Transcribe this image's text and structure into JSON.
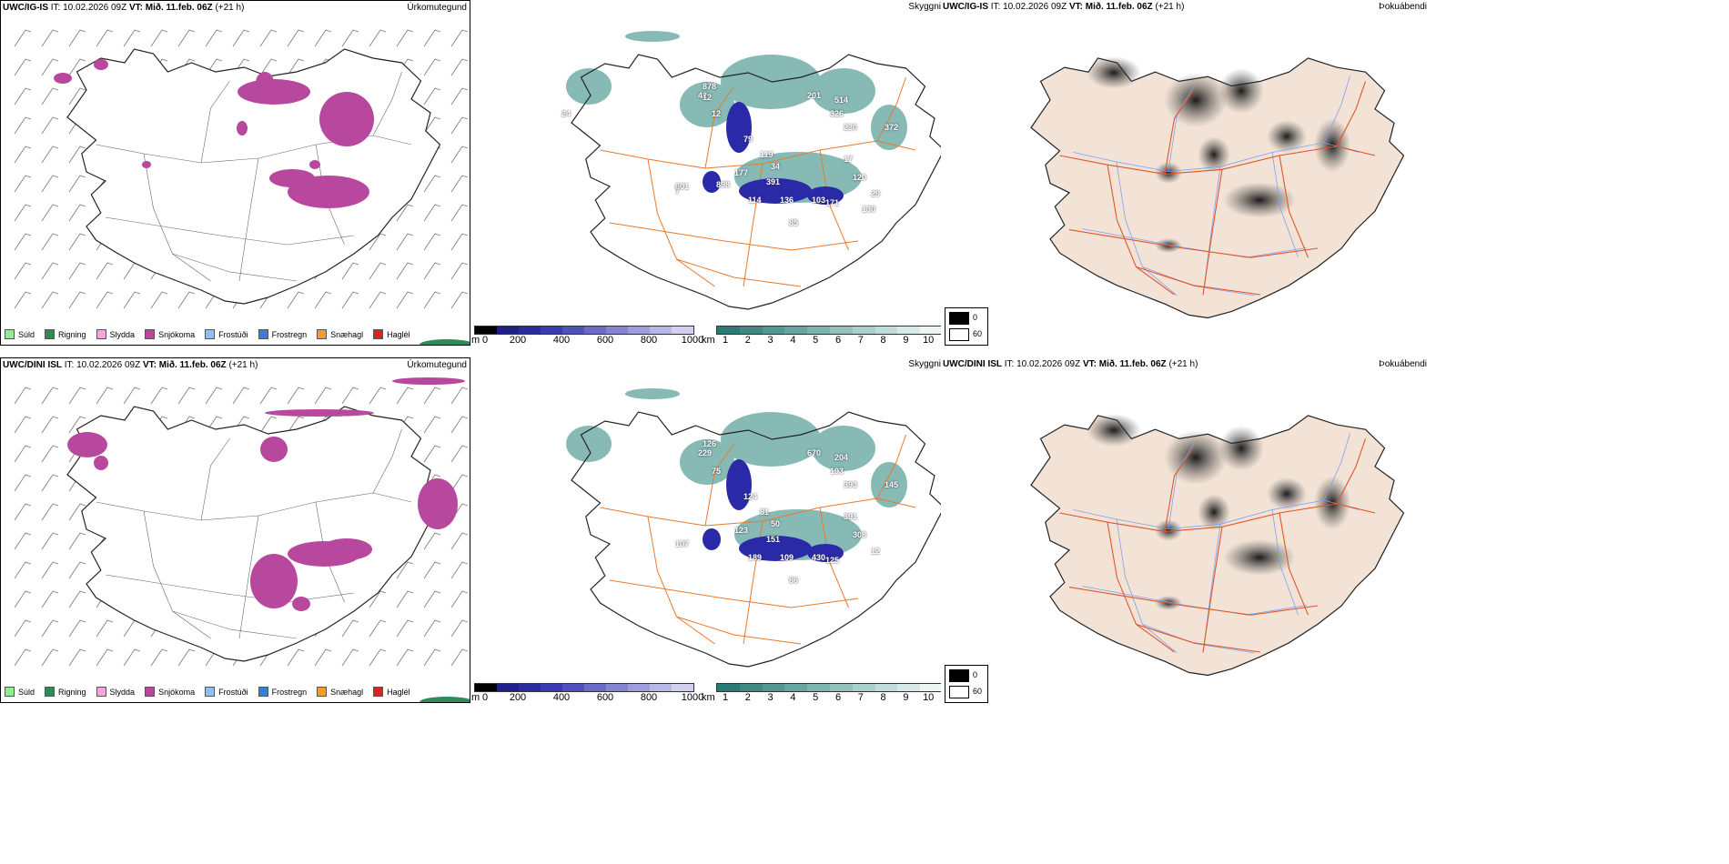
{
  "rows": [
    {
      "model": "UWC/IG-IS",
      "it_label": "IT:",
      "it_value": "10.02.2026 09Z",
      "vt_label": "VT:",
      "vt_value": "Mið. 11.feb. 06Z",
      "lead": "(+21 h)",
      "panels": {
        "precip": "Úrkomutegund",
        "visibility": "Skyggni",
        "fog": "Þokuábendi"
      },
      "snow_labels": [
        "878",
        "79",
        "119",
        "177",
        "391",
        "34",
        "114",
        "136",
        "103",
        "171",
        "85",
        "601",
        "12",
        "42",
        "17"
      ],
      "vis_labels": [
        "201",
        "514",
        "326",
        "230",
        "372",
        "120",
        "29",
        "130",
        "24",
        "898",
        "7",
        "12"
      ]
    },
    {
      "model": "UWC/DINI ISL",
      "it_label": "IT:",
      "it_value": "10.02.2026 09Z",
      "vt_label": "VT:",
      "vt_value": "Mið. 11.feb. 06Z",
      "lead": "(+21 h)",
      "panels": {
        "precip": "Úrkomutegund",
        "visibility": "Skyggni",
        "fog": "Þokuábendi"
      },
      "snow_labels": [
        "126",
        "124",
        "81",
        "123",
        "151",
        "50",
        "189",
        "109",
        "430",
        "125",
        "86",
        "107",
        "75",
        "229",
        "391",
        "670",
        "204",
        "193",
        "393",
        "145",
        "308",
        "12"
      ],
      "vis_labels": []
    }
  ],
  "precip_legend": [
    {
      "label": "Súld",
      "color": "#90ee90"
    },
    {
      "label": "Rigning",
      "color": "#2e8b57"
    },
    {
      "label": "Slydda",
      "color": "#f2a5d6"
    },
    {
      "label": "Snjókoma",
      "color": "#b8489e"
    },
    {
      "label": "Frostúði",
      "color": "#8fbff0"
    },
    {
      "label": "Frostregn",
      "color": "#3b7dd8"
    },
    {
      "label": "Snæhagl",
      "color": "#f0a020"
    },
    {
      "label": "Haglél",
      "color": "#e02020"
    }
  ],
  "snow_bar": {
    "unit": "m",
    "ticks": [
      "0",
      "200",
      "400",
      "600",
      "800",
      "1000"
    ],
    "colors": [
      "#000000",
      "#1f1f8a",
      "#2b2ba0",
      "#3a3ab4",
      "#5050be",
      "#6a6ac8",
      "#8484d2",
      "#9e9edc",
      "#b8b8e6",
      "#d2d2f0"
    ]
  },
  "vis_bar": {
    "unit": "km",
    "ticks": [
      "1",
      "2",
      "3",
      "4",
      "5",
      "6",
      "7",
      "8",
      "9",
      "10"
    ],
    "colors": [
      "#2a7b74",
      "#3e8a82",
      "#529891",
      "#67a6a0",
      "#7db4ae",
      "#93c2bd",
      "#a9d0cb",
      "#c0ddda",
      "#d7eae8",
      "#eef6f5"
    ]
  },
  "fog_legend": {
    "black": "0",
    "white": "60"
  },
  "colors": {
    "snow": "#b8489e",
    "terrain": "#f2e3d6",
    "roads": "#e87a2c",
    "rivers": "#7fa0f0",
    "coast": "#333333"
  }
}
